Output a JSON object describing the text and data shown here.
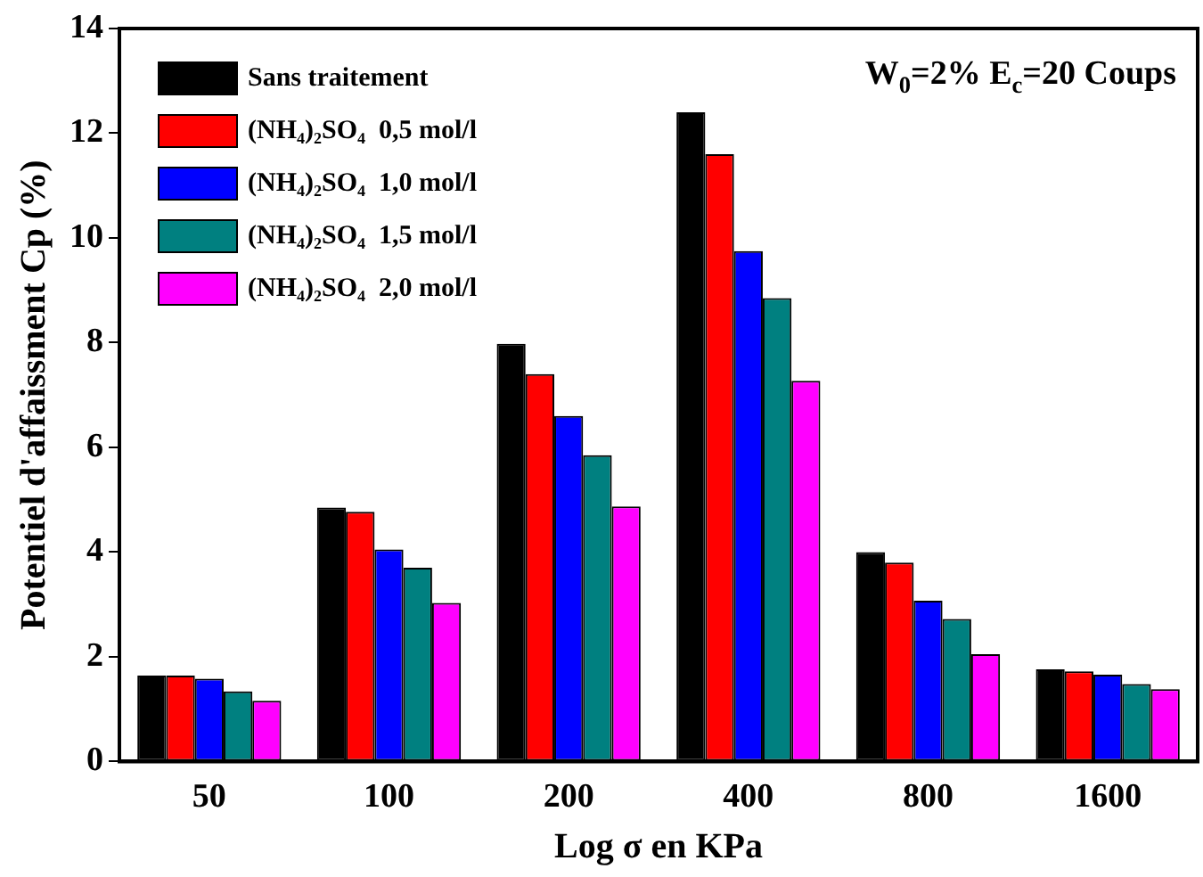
{
  "chart_data": {
    "type": "bar",
    "xlabel": "Log σ en KPa",
    "ylabel": "Potentiel d'affaissment Cp (%)",
    "categories": [
      "50",
      "100",
      "200",
      "400",
      "800",
      "1600"
    ],
    "series": [
      {
        "name": "Sans traitement",
        "color": "#000000",
        "values": [
          1.64,
          4.85,
          7.98,
          12.4,
          4.0,
          1.76
        ]
      },
      {
        "name": "(NH₄)₂SO₄  0,5 mol/l",
        "color": "#ff0000",
        "values": [
          1.64,
          4.77,
          7.4,
          11.6,
          3.8,
          1.72
        ]
      },
      {
        "name": "(NH₄)₂SO₄  1,0 mol/l",
        "color": "#0000ff",
        "values": [
          1.58,
          4.05,
          6.6,
          9.75,
          3.07,
          1.66
        ]
      },
      {
        "name": "(NH₄)₂SO₄  1,5 mol/l",
        "color": "#008080",
        "values": [
          1.34,
          3.7,
          5.85,
          8.85,
          2.72,
          1.48
        ]
      },
      {
        "name": "(NH₄)₂SO₄  2,0 mol/l",
        "color": "#ff00ff",
        "values": [
          1.16,
          3.03,
          4.87,
          7.27,
          2.05,
          1.38
        ]
      }
    ],
    "ylim": [
      0,
      14
    ],
    "yticks": [
      0,
      2,
      4,
      6,
      8,
      10,
      12,
      14
    ],
    "grid": false,
    "legend": "top left",
    "annotations": [
      "W$_{0}$=2% E$_{c}$=20 Coups"
    ]
  }
}
